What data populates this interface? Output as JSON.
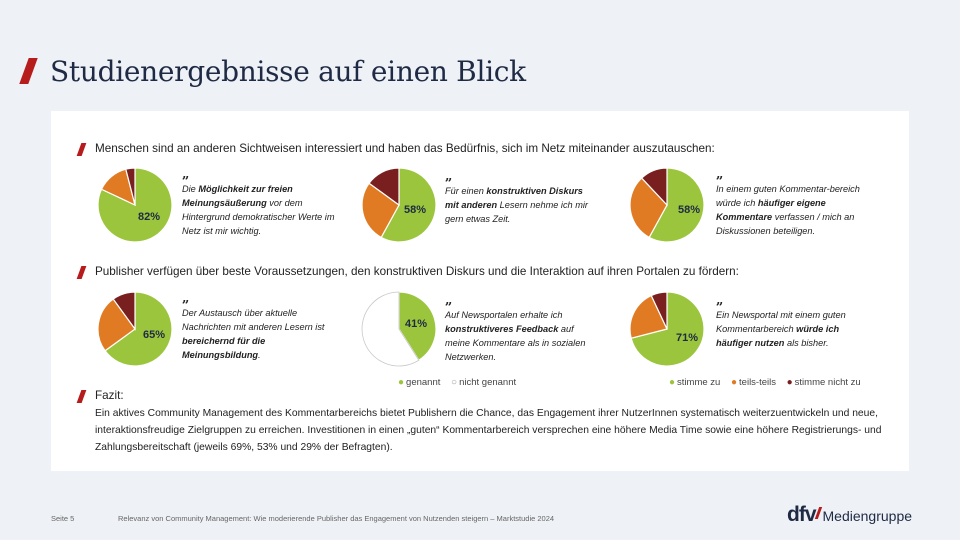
{
  "title": "Studienergebnisse auf einen Blick",
  "colors": {
    "accent": "#b71c1c",
    "green": "#9bc53d",
    "orange": "#e07b24",
    "darkred": "#7a1f1f",
    "white": "#ffffff",
    "title": "#1f2a44"
  },
  "section1": {
    "heading": "Menschen sind an anderen Sichtweisen interessiert und haben das Bedürfnis, sich im Netz miteinander auszutauschen:",
    "charts": [
      {
        "label": "82%",
        "slices": [
          {
            "value": 82,
            "color": "green"
          },
          {
            "value": 14,
            "color": "orange"
          },
          {
            "value": 4,
            "color": "darkred"
          }
        ],
        "quote": [
          {
            "t": "Die "
          },
          {
            "t": "Möglichkeit zur freien Meinungsäußerung",
            "b": true
          },
          {
            "t": " vor dem Hintergrund demokratischer Werte im Netz ist mir wichtig."
          }
        ]
      },
      {
        "label": "58%",
        "slices": [
          {
            "value": 58,
            "color": "green"
          },
          {
            "value": 27,
            "color": "orange"
          },
          {
            "value": 15,
            "color": "darkred"
          }
        ],
        "quote": [
          {
            "t": "Für einen "
          },
          {
            "t": "konstruktiven Diskurs mit anderen",
            "b": true
          },
          {
            "t": " Lesern nehme ich mir gern etwas Zeit."
          }
        ]
      },
      {
        "label": "58%",
        "slices": [
          {
            "value": 58,
            "color": "green"
          },
          {
            "value": 30,
            "color": "orange"
          },
          {
            "value": 12,
            "color": "darkred"
          }
        ],
        "quote": [
          {
            "t": "In einem guten Kommentar-bereich würde ich "
          },
          {
            "t": "häufiger eigene Kommentare",
            "b": true
          },
          {
            "t": " verfassen / mich an Diskussionen beteiligen."
          }
        ]
      }
    ]
  },
  "section2": {
    "heading": "Publisher verfügen über beste Voraussetzungen, den konstruktiven Diskurs und die Interaktion auf ihren Portalen zu fördern:",
    "charts": [
      {
        "label": "65%",
        "slices": [
          {
            "value": 65,
            "color": "green"
          },
          {
            "value": 25,
            "color": "orange"
          },
          {
            "value": 10,
            "color": "darkred"
          }
        ],
        "quote": [
          {
            "t": "Der Austausch über aktuelle Nachrichten mit anderen Lesern ist "
          },
          {
            "t": "bereichernd für die Meinungsbildung",
            "b": true
          },
          {
            "t": "."
          }
        ]
      },
      {
        "label": "41%",
        "slices": [
          {
            "value": 41,
            "color": "green"
          },
          {
            "value": 59,
            "color": "white"
          }
        ],
        "quote": [
          {
            "t": "Auf Newsportalen erhalte ich "
          },
          {
            "t": "konstruktiveres Feedback",
            "b": true
          },
          {
            "t": " auf meine Kommentare als in sozialen Netzwerken."
          }
        ]
      },
      {
        "label": "71%",
        "slices": [
          {
            "value": 71,
            "color": "green"
          },
          {
            "value": 22,
            "color": "orange"
          },
          {
            "value": 7,
            "color": "darkred"
          }
        ],
        "quote": [
          {
            "t": "Ein Newsportal mit einem guten Kommentarbereich "
          },
          {
            "t": "würde ich häufiger nutzen",
            "b": true
          },
          {
            "t": " als bisher."
          }
        ]
      }
    ]
  },
  "legend_mid": [
    {
      "label": "genannt",
      "color": "green",
      "glyph": "●"
    },
    {
      "label": "nicht genannt",
      "color": "white",
      "glyph": "○"
    }
  ],
  "legend_right": [
    {
      "label": "stimme zu",
      "color": "green",
      "glyph": "●"
    },
    {
      "label": "teils-teils",
      "color": "orange",
      "glyph": "●"
    },
    {
      "label": "stimme nicht zu",
      "color": "darkred",
      "glyph": "●"
    }
  ],
  "fazit": {
    "label": "Fazit:",
    "text": "Ein aktives Community Management des Kommentarbereichs bietet Publishern die Chance, das Engagement ihrer NutzerInnen systematisch weiterzuentwickeln und neue, interaktionsfreudige Zielgruppen zu erreichen. Investitionen in einen „guten“ Kommentarbereich versprechen eine höhere Media Time sowie eine höhere Registrierungs- und Zahlungsbereitschaft (jeweils 69%, 53% und 29% der Befragten)."
  },
  "footer": {
    "page": "Seite 5",
    "text": "Relevanz von Community Management: Wie moderierende Publisher das Engagement von Nutzenden steigern – Marktstudie 2024",
    "logo_dfv": "dfv",
    "logo_mg": "Mediengruppe"
  }
}
